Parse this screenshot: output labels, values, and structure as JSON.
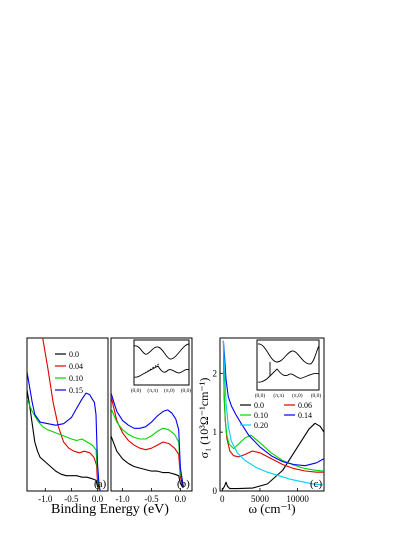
{
  "chart_data": [
    {
      "type": "line",
      "panel_label": "(a)",
      "xlabel": "Binding Energy (eV)",
      "x_ticks": [
        "-1.0",
        "-0.5",
        "0.0"
      ],
      "x_tick_values": [
        -1.0,
        -0.5,
        0.0
      ],
      "xlim": [
        -1.35,
        0.2
      ],
      "ylim": [
        0,
        1
      ],
      "legend_position": "top-right",
      "series": [
        {
          "name": "0.0",
          "color": "#000000",
          "points": [
            [
              -1.35,
              0.66
            ],
            [
              -1.3,
              0.56
            ],
            [
              -1.25,
              0.44
            ],
            [
              -1.2,
              0.32
            ],
            [
              -1.15,
              0.26
            ],
            [
              -1.1,
              0.22
            ],
            [
              -1.0,
              0.19
            ],
            [
              -0.9,
              0.16
            ],
            [
              -0.8,
              0.13
            ],
            [
              -0.7,
              0.11
            ],
            [
              -0.6,
              0.1
            ],
            [
              -0.5,
              0.1
            ],
            [
              -0.4,
              0.1
            ],
            [
              -0.3,
              0.09
            ],
            [
              -0.2,
              0.09
            ],
            [
              -0.1,
              0.08
            ],
            [
              -0.03,
              0.07
            ],
            [
              0.0,
              0.03
            ],
            [
              0.05,
              0.0
            ]
          ]
        },
        {
          "name": "0.04",
          "color": "#e00000",
          "points": [
            [
              -1.05,
              1.0
            ],
            [
              -0.95,
              0.8
            ],
            [
              -0.85,
              0.58
            ],
            [
              -0.75,
              0.42
            ],
            [
              -0.65,
              0.32
            ],
            [
              -0.55,
              0.28
            ],
            [
              -0.45,
              0.26
            ],
            [
              -0.35,
              0.25
            ],
            [
              -0.25,
              0.26
            ],
            [
              -0.15,
              0.25
            ],
            [
              -0.07,
              0.22
            ],
            [
              -0.02,
              0.17
            ],
            [
              0.0,
              0.06
            ],
            [
              0.04,
              0.0
            ]
          ]
        },
        {
          "name": "0.10",
          "color": "#00d400",
          "points": [
            [
              -1.35,
              0.6
            ],
            [
              -1.25,
              0.52
            ],
            [
              -1.15,
              0.46
            ],
            [
              -1.05,
              0.42
            ],
            [
              -0.95,
              0.4
            ],
            [
              -0.8,
              0.38
            ],
            [
              -0.65,
              0.36
            ],
            [
              -0.5,
              0.34
            ],
            [
              -0.4,
              0.33
            ],
            [
              -0.3,
              0.34
            ],
            [
              -0.2,
              0.32
            ],
            [
              -0.1,
              0.3
            ],
            [
              -0.03,
              0.27
            ],
            [
              0.0,
              0.12
            ],
            [
              0.04,
              0.0
            ]
          ]
        },
        {
          "name": "0.15",
          "color": "#0000ff",
          "points": [
            [
              -1.35,
              0.78
            ],
            [
              -1.3,
              0.68
            ],
            [
              -1.25,
              0.58
            ],
            [
              -1.2,
              0.5
            ],
            [
              -1.1,
              0.45
            ],
            [
              -0.95,
              0.44
            ],
            [
              -0.8,
              0.43
            ],
            [
              -0.65,
              0.44
            ],
            [
              -0.5,
              0.48
            ],
            [
              -0.4,
              0.54
            ],
            [
              -0.3,
              0.6
            ],
            [
              -0.22,
              0.64
            ],
            [
              -0.15,
              0.63
            ],
            [
              -0.1,
              0.6
            ],
            [
              -0.06,
              0.58
            ],
            [
              -0.03,
              0.5
            ],
            [
              0.0,
              0.18
            ],
            [
              0.03,
              0.04
            ],
            [
              0.05,
              0.0
            ]
          ]
        }
      ]
    },
    {
      "type": "line",
      "panel_label": "(b)",
      "x_ticks": [
        "-1.0",
        "-0.5",
        "0.0"
      ],
      "x_tick_values": [
        -1.0,
        -0.5,
        0.0
      ],
      "xlim": [
        -1.2,
        0.2
      ],
      "ylim": [
        0,
        1
      ],
      "inset": {
        "x_ticks": [
          "(0,0)",
          "(π,π)",
          "(π,0)",
          "(0,0)"
        ]
      },
      "series": [
        {
          "name": "0.0",
          "color": "#000000",
          "points": [
            [
              -1.2,
              0.36
            ],
            [
              -1.1,
              0.26
            ],
            [
              -1.0,
              0.21
            ],
            [
              -0.9,
              0.18
            ],
            [
              -0.8,
              0.16
            ],
            [
              -0.7,
              0.15
            ],
            [
              -0.6,
              0.14
            ],
            [
              -0.5,
              0.13
            ],
            [
              -0.4,
              0.13
            ],
            [
              -0.3,
              0.12
            ],
            [
              -0.2,
              0.12
            ],
            [
              -0.1,
              0.11
            ],
            [
              -0.03,
              0.1
            ],
            [
              0.0,
              0.05
            ],
            [
              0.05,
              0.02
            ]
          ]
        },
        {
          "name": "0.04",
          "color": "#e00000",
          "points": [
            [
              -1.2,
              0.62
            ],
            [
              -1.1,
              0.46
            ],
            [
              -1.0,
              0.38
            ],
            [
              -0.9,
              0.33
            ],
            [
              -0.8,
              0.3
            ],
            [
              -0.7,
              0.28
            ],
            [
              -0.6,
              0.27
            ],
            [
              -0.5,
              0.28
            ],
            [
              -0.4,
              0.3
            ],
            [
              -0.3,
              0.32
            ],
            [
              -0.2,
              0.31
            ],
            [
              -0.1,
              0.28
            ],
            [
              -0.03,
              0.24
            ],
            [
              0.0,
              0.09
            ],
            [
              0.05,
              0.03
            ]
          ]
        },
        {
          "name": "0.10",
          "color": "#00d400",
          "points": [
            [
              -1.2,
              0.54
            ],
            [
              -1.1,
              0.45
            ],
            [
              -1.0,
              0.4
            ],
            [
              -0.9,
              0.37
            ],
            [
              -0.8,
              0.35
            ],
            [
              -0.7,
              0.34
            ],
            [
              -0.6,
              0.34
            ],
            [
              -0.5,
              0.36
            ],
            [
              -0.4,
              0.39
            ],
            [
              -0.3,
              0.41
            ],
            [
              -0.2,
              0.4
            ],
            [
              -0.1,
              0.37
            ],
            [
              -0.03,
              0.32
            ],
            [
              0.0,
              0.12
            ],
            [
              0.05,
              0.03
            ]
          ]
        },
        {
          "name": "0.15",
          "color": "#0000ff",
          "points": [
            [
              -1.2,
              0.64
            ],
            [
              -1.1,
              0.52
            ],
            [
              -1.0,
              0.46
            ],
            [
              -0.9,
              0.43
            ],
            [
              -0.8,
              0.41
            ],
            [
              -0.7,
              0.41
            ],
            [
              -0.6,
              0.42
            ],
            [
              -0.5,
              0.45
            ],
            [
              -0.4,
              0.49
            ],
            [
              -0.3,
              0.52
            ],
            [
              -0.22,
              0.53
            ],
            [
              -0.15,
              0.51
            ],
            [
              -0.08,
              0.47
            ],
            [
              -0.03,
              0.4
            ],
            [
              0.0,
              0.15
            ],
            [
              0.05,
              0.03
            ]
          ]
        }
      ]
    },
    {
      "type": "line",
      "panel_label": "(c)",
      "xlabel": "ω (cm⁻¹)",
      "ylabel": "σ₁ (10³Ω⁻¹cm⁻¹)",
      "x_ticks": [
        "0",
        "5000",
        "10000"
      ],
      "x_tick_values": [
        0,
        5000,
        10000
      ],
      "y_ticks": [
        "0",
        "1",
        "2"
      ],
      "y_tick_values": [
        0,
        1,
        2
      ],
      "xlim": [
        -300,
        13500
      ],
      "ylim": [
        0,
        2.6
      ],
      "legend_position": "center",
      "inset": {
        "x_ticks": [
          "(0,0)",
          "(π,π)",
          "(π,0)",
          "(0,0)"
        ]
      },
      "series": [
        {
          "name": "0.0",
          "color": "#000000",
          "points": [
            [
              0,
              0.02
            ],
            [
              300,
              0.08
            ],
            [
              500,
              0.15
            ],
            [
              700,
              0.08
            ],
            [
              1000,
              0.04
            ],
            [
              2000,
              0.04
            ],
            [
              4000,
              0.05
            ],
            [
              6000,
              0.12
            ],
            [
              8000,
              0.35
            ],
            [
              10000,
              0.75
            ],
            [
              11500,
              1.05
            ],
            [
              12300,
              1.15
            ],
            [
              13000,
              1.1
            ],
            [
              13500,
              1.0
            ]
          ]
        },
        {
          "name": "0.06",
          "color": "#e00000",
          "points": [
            [
              150,
              2.55
            ],
            [
              250,
              1.6
            ],
            [
              400,
              1.2
            ],
            [
              600,
              0.9
            ],
            [
              1000,
              0.68
            ],
            [
              1500,
              0.6
            ],
            [
              2200,
              0.58
            ],
            [
              3000,
              0.62
            ],
            [
              4000,
              0.68
            ],
            [
              5000,
              0.65
            ],
            [
              6500,
              0.55
            ],
            [
              8000,
              0.45
            ],
            [
              9500,
              0.38
            ],
            [
              11000,
              0.34
            ],
            [
              12500,
              0.32
            ],
            [
              13500,
              0.32
            ]
          ]
        },
        {
          "name": "0.10",
          "color": "#00d400",
          "points": [
            [
              150,
              2.55
            ],
            [
              250,
              1.7
            ],
            [
              400,
              1.2
            ],
            [
              600,
              0.95
            ],
            [
              900,
              0.8
            ],
            [
              1500,
              0.72
            ],
            [
              2200,
              0.8
            ],
            [
              3000,
              0.9
            ],
            [
              3800,
              0.95
            ],
            [
              5000,
              0.82
            ],
            [
              6500,
              0.65
            ],
            [
              8000,
              0.52
            ],
            [
              9500,
              0.44
            ],
            [
              11000,
              0.38
            ],
            [
              12500,
              0.35
            ],
            [
              13500,
              0.34
            ]
          ]
        },
        {
          "name": "0.14",
          "color": "#0000ff",
          "points": [
            [
              150,
              2.55
            ],
            [
              300,
              2.3
            ],
            [
              500,
              1.9
            ],
            [
              800,
              1.6
            ],
            [
              1200,
              1.45
            ],
            [
              1800,
              1.3
            ],
            [
              2500,
              1.15
            ],
            [
              3500,
              0.95
            ],
            [
              5000,
              0.75
            ],
            [
              6500,
              0.6
            ],
            [
              8000,
              0.5
            ],
            [
              9500,
              0.45
            ],
            [
              11000,
              0.43
            ],
            [
              12500,
              0.48
            ],
            [
              13500,
              0.55
            ]
          ]
        },
        {
          "name": "0.20",
          "color": "#00d0ff",
          "points": [
            [
              150,
              2.55
            ],
            [
              300,
              2.1
            ],
            [
              500,
              1.5
            ],
            [
              800,
              1.1
            ],
            [
              1200,
              0.85
            ],
            [
              2000,
              0.65
            ],
            [
              3000,
              0.52
            ],
            [
              4500,
              0.4
            ],
            [
              6000,
              0.32
            ],
            [
              7500,
              0.26
            ],
            [
              9000,
              0.2
            ],
            [
              10500,
              0.16
            ],
            [
              12000,
              0.12
            ],
            [
              13500,
              0.1
            ]
          ]
        }
      ]
    }
  ]
}
